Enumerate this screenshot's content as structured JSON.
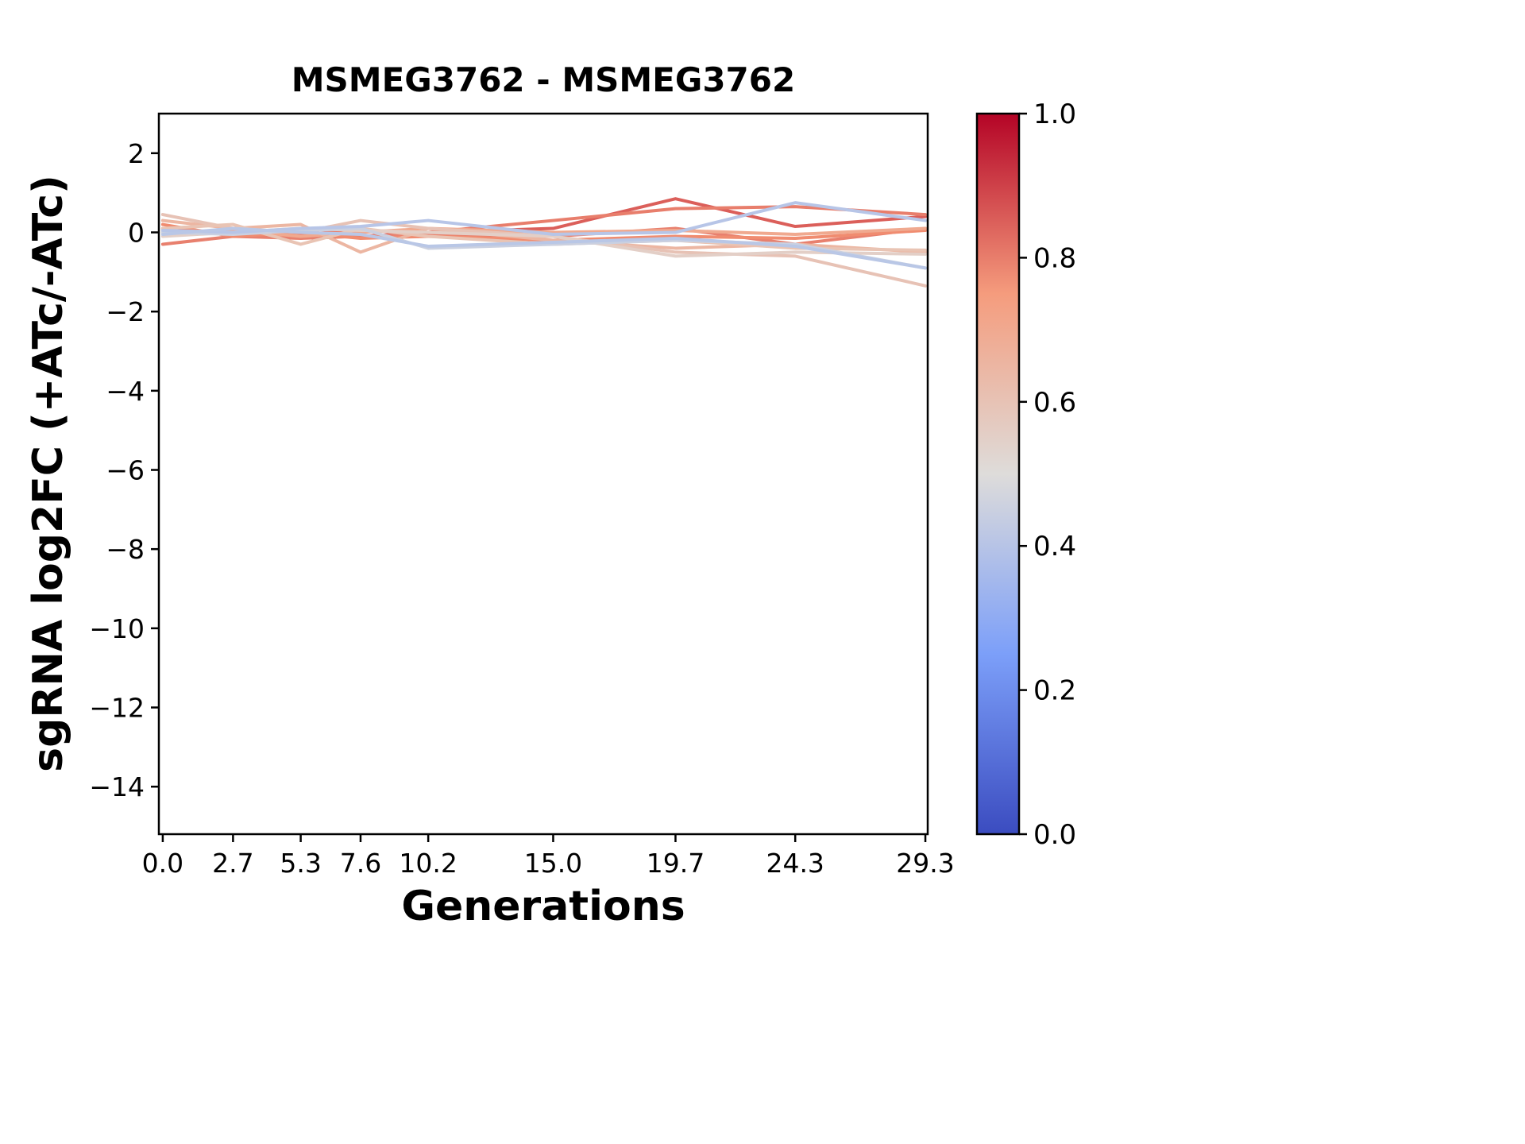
{
  "chart_data": {
    "type": "line",
    "title": "MSMEG3762 - MSMEG3762",
    "xlabel": "Generations",
    "ylabel": "sgRNA log2FC (+ATc/-ATc)",
    "x": [
      0.0,
      2.7,
      5.3,
      7.6,
      10.2,
      15.0,
      19.7,
      24.3,
      29.3
    ],
    "xtick_values": [
      0.0,
      2.7,
      5.3,
      7.6,
      10.2,
      15.0,
      19.7,
      24.3,
      29.3
    ],
    "xtick_labels": [
      "0.0",
      "2.7",
      "5.3",
      "7.6",
      "10.2",
      "15.0",
      "19.7",
      "24.3",
      "29.3"
    ],
    "ytick_values": [
      2,
      0,
      -2,
      -4,
      -6,
      -8,
      -10,
      -12,
      -14
    ],
    "ytick_labels": [
      "2",
      "0",
      "−2",
      "−4",
      "−6",
      "−8",
      "−10",
      "−12",
      "−14"
    ],
    "xlim": [
      -0.15,
      29.39
    ],
    "ylim": [
      -15.2,
      3.0
    ],
    "grid": false,
    "legend": "none",
    "series": [
      {
        "colormap_value": 0.85,
        "color": "#DB5F5A",
        "values": [
          0.1,
          -0.05,
          0.0,
          -0.1,
          0.0,
          0.1,
          0.85,
          0.15,
          0.4
        ]
      },
      {
        "colormap_value": 0.8,
        "color": "#E87E6C",
        "values": [
          0.05,
          0.0,
          -0.05,
          0.05,
          0.0,
          0.3,
          0.6,
          0.65,
          0.45
        ]
      },
      {
        "colormap_value": 0.8,
        "color": "#E8806E",
        "values": [
          -0.3,
          -0.1,
          -0.15,
          -0.1,
          -0.05,
          -0.1,
          0.1,
          -0.3,
          0.1
        ]
      },
      {
        "colormap_value": 0.75,
        "color": "#F08C70",
        "values": [
          0.2,
          -0.1,
          0.0,
          -0.15,
          -0.1,
          -0.2,
          -0.1,
          -0.15,
          0.05
        ]
      },
      {
        "colormap_value": 0.7,
        "color": "#F0A98F",
        "values": [
          0.0,
          0.05,
          -0.1,
          0.0,
          0.1,
          0.0,
          0.05,
          -0.05,
          0.1
        ]
      },
      {
        "colormap_value": 0.65,
        "color": "#ECB6A2",
        "values": [
          0.3,
          0.1,
          0.2,
          -0.5,
          0.1,
          -0.2,
          -0.4,
          -0.3,
          -0.5
        ]
      },
      {
        "colormap_value": 0.6,
        "color": "#E7C2B5",
        "values": [
          0.45,
          0.1,
          0.0,
          0.3,
          0.1,
          -0.1,
          -0.5,
          -0.6,
          -1.35
        ]
      },
      {
        "colormap_value": 0.6,
        "color": "#E9C4B4",
        "values": [
          0.1,
          0.2,
          -0.3,
          0.1,
          -0.1,
          -0.3,
          -0.2,
          -0.4,
          -0.45
        ]
      },
      {
        "colormap_value": 0.55,
        "color": "#E3CFC7",
        "values": [
          -0.1,
          0.0,
          0.1,
          0.05,
          0.0,
          -0.1,
          -0.6,
          -0.5,
          -0.55
        ]
      },
      {
        "colormap_value": 0.45,
        "color": "#CAD0E0",
        "values": [
          0.0,
          -0.05,
          0.05,
          0.1,
          -0.4,
          -0.3,
          -0.2,
          -0.3,
          -0.9
        ]
      },
      {
        "colormap_value": 0.4,
        "color": "#B7C5E7",
        "values": [
          0.05,
          0.0,
          0.1,
          0.15,
          0.3,
          -0.05,
          0.0,
          0.75,
          0.3
        ]
      },
      {
        "colormap_value": 0.4,
        "color": "#B9C7E6",
        "values": [
          -0.05,
          0.1,
          0.0,
          -0.05,
          -0.35,
          -0.25,
          -0.15,
          -0.35,
          -0.9
        ]
      }
    ],
    "colorbar": {
      "colormap": "coolwarm",
      "min": 0.0,
      "max": 1.0,
      "tick_values": [
        0.0,
        0.2,
        0.4,
        0.6,
        0.8,
        1.0
      ],
      "tick_labels": [
        "0.0",
        "0.2",
        "0.4",
        "0.6",
        "0.8",
        "1.0"
      ],
      "stops": [
        {
          "offset": 0.0,
          "color": "#3B4CC0"
        },
        {
          "offset": 0.25,
          "color": "#7C9FF9"
        },
        {
          "offset": 0.5,
          "color": "#DEDCDA"
        },
        {
          "offset": 0.75,
          "color": "#F59C7D"
        },
        {
          "offset": 1.0,
          "color": "#B40426"
        }
      ]
    },
    "colors": {
      "axis": "#000000",
      "background": "#ffffff"
    }
  }
}
